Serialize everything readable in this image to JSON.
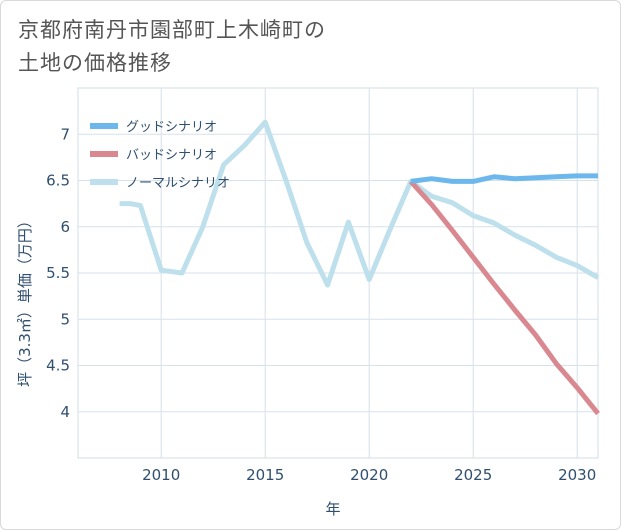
{
  "title_line1": "京都府南丹市園部町上木崎町の",
  "title_line2": "土地の価格推移",
  "chart_data": {
    "type": "line",
    "xlabel": "年",
    "ylabel": "坪（3.3㎡）単価（万円）",
    "xlim": [
      2006,
      2031
    ],
    "ylim": [
      3.5,
      7.5
    ],
    "x_ticks": [
      2010,
      2015,
      2020,
      2025,
      2030
    ],
    "y_ticks": [
      4,
      4.5,
      5,
      5.5,
      6,
      6.5,
      7
    ],
    "x_tick_labels": [
      "2010",
      "2015",
      "2020",
      "2025",
      "2030"
    ],
    "y_tick_labels": [
      "4",
      "4.5",
      "5",
      "5.5",
      "6",
      "6.5",
      "7"
    ],
    "grid": true,
    "legend_position": "top-left",
    "series": [
      {
        "name": "グッドシナリオ",
        "color": "#6cb8ec",
        "x": [
          2022,
          2023,
          2024,
          2025,
          2026,
          2027,
          2028,
          2029,
          2030,
          2031
        ],
        "y": [
          6.49,
          6.52,
          6.49,
          6.49,
          6.54,
          6.52,
          6.53,
          6.54,
          6.55,
          6.55
        ]
      },
      {
        "name": "バッドシナリオ",
        "color": "#d98890",
        "x": [
          2022,
          2023,
          2024,
          2025,
          2026,
          2027,
          2028,
          2029,
          2030,
          2031
        ],
        "y": [
          6.49,
          6.24,
          5.96,
          5.67,
          5.38,
          5.1,
          4.83,
          4.52,
          4.26,
          3.98
        ]
      },
      {
        "name": "ノーマルシナリオ",
        "color": "#bde0ec",
        "x": [
          2008,
          2008.5,
          2009,
          2010,
          2011,
          2012,
          2013,
          2014,
          2015,
          2016,
          2017,
          2018,
          2019,
          2020,
          2021,
          2022,
          2023,
          2024,
          2025,
          2026,
          2027,
          2028,
          2029,
          2030,
          2031
        ],
        "y": [
          6.25,
          6.25,
          6.23,
          5.53,
          5.5,
          6.0,
          6.67,
          6.88,
          7.13,
          6.5,
          5.83,
          5.37,
          6.05,
          5.43,
          5.97,
          6.49,
          6.33,
          6.26,
          6.12,
          6.04,
          5.91,
          5.8,
          5.67,
          5.58,
          5.45
        ]
      }
    ]
  }
}
